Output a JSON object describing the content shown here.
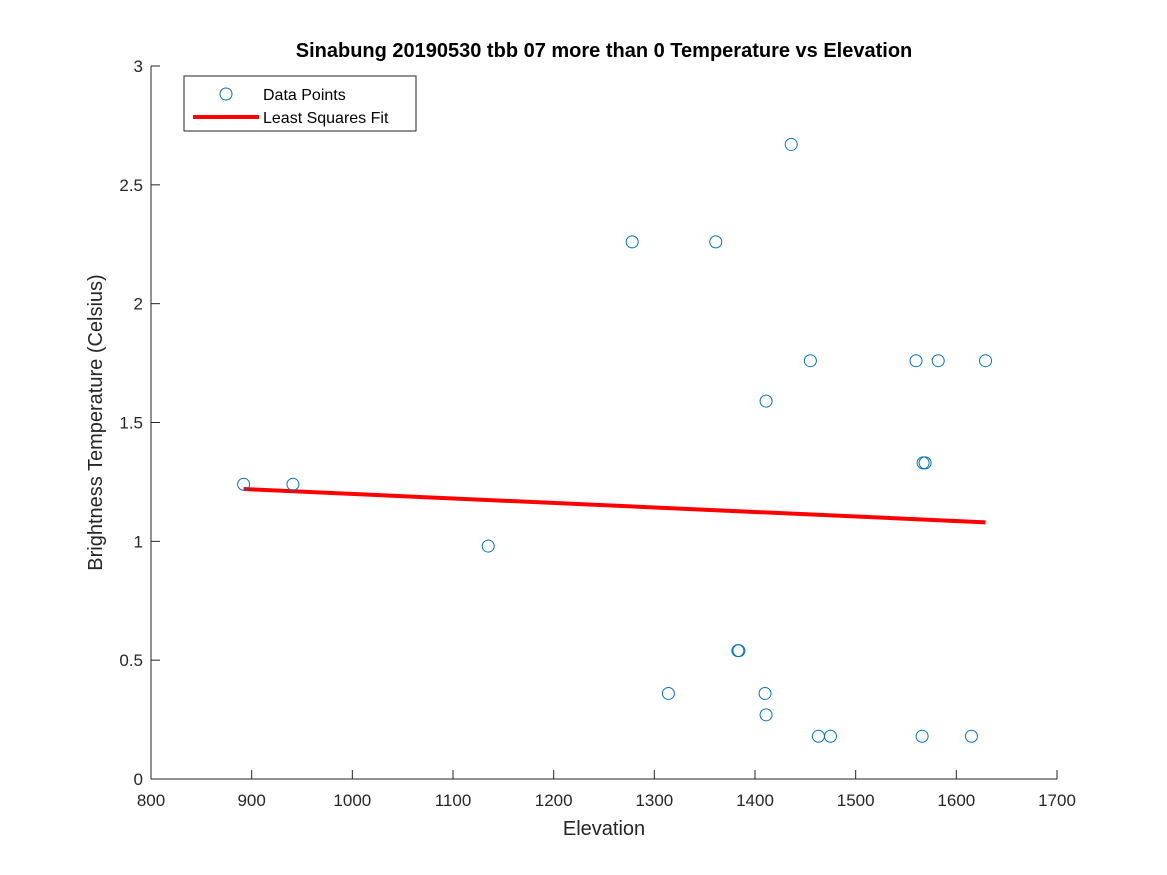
{
  "chart_data": {
    "type": "scatter",
    "title": "Sinabung 20190530 tbb 07 more than 0 Temperature vs Elevation",
    "xlabel": "Elevation",
    "ylabel": "Brightness Temperature (Celsius)",
    "xlim": [
      800,
      1700
    ],
    "ylim": [
      0,
      3
    ],
    "xticks": [
      "800",
      "900",
      "1000",
      "1100",
      "1200",
      "1300",
      "1400",
      "1500",
      "1600",
      "1700"
    ],
    "yticks": [
      "0",
      "0.5",
      "1",
      "1.5",
      "2",
      "2.5",
      "3"
    ],
    "grid": false,
    "legend_position": "top-left",
    "series": [
      {
        "name": "Data Points",
        "kind": "scatter",
        "marker": "open-circle",
        "color": "#0072BD",
        "points": [
          [
            892,
            1.24
          ],
          [
            941,
            1.24
          ],
          [
            1135,
            0.98
          ],
          [
            1278,
            2.26
          ],
          [
            1314,
            0.36
          ],
          [
            1361,
            2.26
          ],
          [
            1383,
            0.54
          ],
          [
            1384,
            0.54
          ],
          [
            1410,
            0.36
          ],
          [
            1411,
            0.27
          ],
          [
            1411,
            1.59
          ],
          [
            1436,
            2.67
          ],
          [
            1455,
            1.76
          ],
          [
            1463,
            0.18
          ],
          [
            1475,
            0.18
          ],
          [
            1560,
            1.76
          ],
          [
            1566,
            0.18
          ],
          [
            1567,
            1.33
          ],
          [
            1569,
            1.33
          ],
          [
            1582,
            1.76
          ],
          [
            1615,
            0.18
          ],
          [
            1629,
            1.76
          ]
        ]
      },
      {
        "name": "Least Squares Fit",
        "kind": "line",
        "color": "#FF0000",
        "points": [
          [
            892,
            1.22
          ],
          [
            1629,
            1.08
          ]
        ]
      }
    ]
  }
}
